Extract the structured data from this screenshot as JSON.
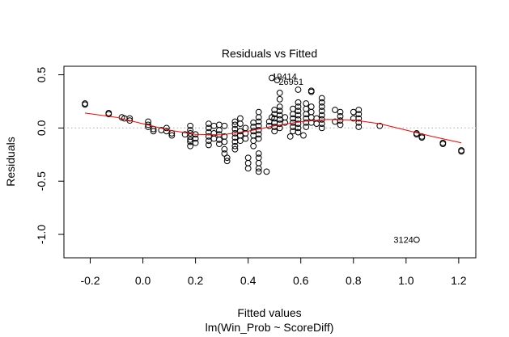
{
  "chart_data": {
    "type": "scatter",
    "title": "Residuals vs Fitted",
    "xlabel": "Fitted values",
    "subtitle": "lm(Win_Prob ~ ScoreDiff)",
    "ylabel": "Residuals",
    "xlim": [
      -0.3,
      1.265
    ],
    "ylim": [
      -1.22,
      0.58
    ],
    "x_ticks": [
      "-0.2",
      "0.0",
      "0.2",
      "0.4",
      "0.6",
      "0.8",
      "1.0",
      "1.2"
    ],
    "y_ticks": [
      "-1.0",
      "-0.5",
      "0.0",
      "0.5"
    ],
    "reference_line": {
      "y": 0,
      "style": "dotted",
      "color": "#bbbbbb"
    },
    "smooth_color": "#ff0000",
    "point_color": "#000000",
    "annotations": [
      {
        "text": "19414",
        "x": 0.5,
        "y": 0.47
      },
      {
        "text": "26951",
        "x": 0.51,
        "y": 0.45
      },
      {
        "text": "3124",
        "x": 1.04,
        "y": -1.05
      }
    ],
    "smooth": [
      {
        "x": -0.22,
        "y": 0.14
      },
      {
        "x": -0.1,
        "y": 0.1
      },
      {
        "x": 0.0,
        "y": 0.04
      },
      {
        "x": 0.1,
        "y": -0.02
      },
      {
        "x": 0.2,
        "y": -0.06
      },
      {
        "x": 0.3,
        "y": -0.065
      },
      {
        "x": 0.4,
        "y": -0.03
      },
      {
        "x": 0.5,
        "y": 0.02
      },
      {
        "x": 0.6,
        "y": 0.06
      },
      {
        "x": 0.7,
        "y": 0.08
      },
      {
        "x": 0.8,
        "y": 0.075
      },
      {
        "x": 0.9,
        "y": 0.04
      },
      {
        "x": 1.0,
        "y": -0.02
      },
      {
        "x": 1.1,
        "y": -0.08
      },
      {
        "x": 1.21,
        "y": -0.14
      }
    ],
    "points": [
      {
        "x": -0.22,
        "y": 0.22
      },
      {
        "x": -0.22,
        "y": 0.23
      },
      {
        "x": -0.13,
        "y": 0.13
      },
      {
        "x": -0.13,
        "y": 0.14
      },
      {
        "x": -0.08,
        "y": 0.1
      },
      {
        "x": -0.07,
        "y": 0.09
      },
      {
        "x": -0.05,
        "y": 0.09
      },
      {
        "x": -0.05,
        "y": 0.07
      },
      {
        "x": 0.02,
        "y": 0.06
      },
      {
        "x": 0.02,
        "y": 0.03
      },
      {
        "x": 0.02,
        "y": 0.01
      },
      {
        "x": 0.04,
        "y": -0.01
      },
      {
        "x": 0.04,
        "y": -0.03
      },
      {
        "x": 0.07,
        "y": -0.02
      },
      {
        "x": 0.09,
        "y": 0.0
      },
      {
        "x": 0.09,
        "y": -0.03
      },
      {
        "x": 0.11,
        "y": -0.05
      },
      {
        "x": 0.11,
        "y": -0.07
      },
      {
        "x": 0.16,
        "y": -0.06
      },
      {
        "x": 0.18,
        "y": 0.02
      },
      {
        "x": 0.18,
        "y": -0.02
      },
      {
        "x": 0.18,
        "y": -0.05
      },
      {
        "x": 0.18,
        "y": -0.08
      },
      {
        "x": 0.18,
        "y": -0.11
      },
      {
        "x": 0.18,
        "y": -0.13
      },
      {
        "x": 0.18,
        "y": -0.17
      },
      {
        "x": 0.2,
        "y": -0.1
      },
      {
        "x": 0.2,
        "y": -0.14
      },
      {
        "x": 0.2,
        "y": -0.06
      },
      {
        "x": 0.25,
        "y": 0.04
      },
      {
        "x": 0.25,
        "y": 0.0
      },
      {
        "x": 0.25,
        "y": -0.04
      },
      {
        "x": 0.25,
        "y": -0.08
      },
      {
        "x": 0.25,
        "y": -0.12
      },
      {
        "x": 0.25,
        "y": -0.16
      },
      {
        "x": 0.27,
        "y": -0.05
      },
      {
        "x": 0.27,
        "y": -0.1
      },
      {
        "x": 0.27,
        "y": 0.02
      },
      {
        "x": 0.29,
        "y": 0.03
      },
      {
        "x": 0.29,
        "y": -0.02
      },
      {
        "x": 0.29,
        "y": -0.06
      },
      {
        "x": 0.29,
        "y": -0.11
      },
      {
        "x": 0.29,
        "y": -0.15
      },
      {
        "x": 0.31,
        "y": 0.02
      },
      {
        "x": 0.31,
        "y": -0.08
      },
      {
        "x": 0.31,
        "y": -0.13
      },
      {
        "x": 0.31,
        "y": -0.2
      },
      {
        "x": 0.31,
        "y": -0.24
      },
      {
        "x": 0.32,
        "y": -0.28
      },
      {
        "x": 0.32,
        "y": -0.31
      },
      {
        "x": 0.35,
        "y": 0.06
      },
      {
        "x": 0.35,
        "y": 0.03
      },
      {
        "x": 0.35,
        "y": -0.01
      },
      {
        "x": 0.35,
        "y": -0.05
      },
      {
        "x": 0.35,
        "y": -0.09
      },
      {
        "x": 0.35,
        "y": -0.13
      },
      {
        "x": 0.35,
        "y": -0.17
      },
      {
        "x": 0.35,
        "y": -0.2
      },
      {
        "x": 0.37,
        "y": 0.09
      },
      {
        "x": 0.37,
        "y": 0.04
      },
      {
        "x": 0.37,
        "y": -0.03
      },
      {
        "x": 0.37,
        "y": -0.07
      },
      {
        "x": 0.37,
        "y": -0.12
      },
      {
        "x": 0.39,
        "y": 0.0
      },
      {
        "x": 0.39,
        "y": -0.05
      },
      {
        "x": 0.39,
        "y": -0.1
      },
      {
        "x": 0.4,
        "y": -0.28
      },
      {
        "x": 0.4,
        "y": -0.33
      },
      {
        "x": 0.4,
        "y": -0.38
      },
      {
        "x": 0.42,
        "y": 0.05
      },
      {
        "x": 0.42,
        "y": 0.01
      },
      {
        "x": 0.42,
        "y": -0.03
      },
      {
        "x": 0.42,
        "y": -0.07
      },
      {
        "x": 0.42,
        "y": -0.12
      },
      {
        "x": 0.42,
        "y": -0.17
      },
      {
        "x": 0.44,
        "y": 0.15
      },
      {
        "x": 0.44,
        "y": 0.1
      },
      {
        "x": 0.44,
        "y": 0.06
      },
      {
        "x": 0.44,
        "y": 0.02
      },
      {
        "x": 0.44,
        "y": -0.02
      },
      {
        "x": 0.44,
        "y": -0.06
      },
      {
        "x": 0.44,
        "y": -0.1
      },
      {
        "x": 0.44,
        "y": -0.24
      },
      {
        "x": 0.44,
        "y": -0.28
      },
      {
        "x": 0.44,
        "y": -0.33
      },
      {
        "x": 0.44,
        "y": -0.38
      },
      {
        "x": 0.44,
        "y": -0.41
      },
      {
        "x": 0.47,
        "y": -0.41
      },
      {
        "x": 0.48,
        "y": 0.02
      },
      {
        "x": 0.48,
        "y": 0.06
      },
      {
        "x": 0.49,
        "y": 0.47
      },
      {
        "x": 0.49,
        "y": 0.1
      },
      {
        "x": 0.51,
        "y": 0.45
      },
      {
        "x": 0.5,
        "y": 0.17
      },
      {
        "x": 0.5,
        "y": 0.13
      },
      {
        "x": 0.5,
        "y": 0.09
      },
      {
        "x": 0.5,
        "y": 0.05
      },
      {
        "x": 0.5,
        "y": 0.01
      },
      {
        "x": 0.5,
        "y": -0.03
      },
      {
        "x": 0.52,
        "y": 0.33
      },
      {
        "x": 0.52,
        "y": 0.27
      },
      {
        "x": 0.52,
        "y": 0.2
      },
      {
        "x": 0.52,
        "y": 0.16
      },
      {
        "x": 0.52,
        "y": 0.12
      },
      {
        "x": 0.52,
        "y": 0.08
      },
      {
        "x": 0.52,
        "y": 0.04
      },
      {
        "x": 0.52,
        "y": 0.0
      },
      {
        "x": 0.54,
        "y": 0.1
      },
      {
        "x": 0.54,
        "y": 0.05
      },
      {
        "x": 0.56,
        "y": -0.08
      },
      {
        "x": 0.57,
        "y": 0.18
      },
      {
        "x": 0.57,
        "y": 0.13
      },
      {
        "x": 0.57,
        "y": 0.09
      },
      {
        "x": 0.57,
        "y": 0.05
      },
      {
        "x": 0.57,
        "y": 0.01
      },
      {
        "x": 0.57,
        "y": -0.03
      },
      {
        "x": 0.59,
        "y": 0.36
      },
      {
        "x": 0.59,
        "y": 0.24
      },
      {
        "x": 0.59,
        "y": 0.2
      },
      {
        "x": 0.59,
        "y": 0.16
      },
      {
        "x": 0.59,
        "y": 0.12
      },
      {
        "x": 0.59,
        "y": 0.08
      },
      {
        "x": 0.59,
        "y": 0.04
      },
      {
        "x": 0.59,
        "y": 0.0
      },
      {
        "x": 0.59,
        "y": -0.04
      },
      {
        "x": 0.61,
        "y": -0.07
      },
      {
        "x": 0.62,
        "y": 0.23
      },
      {
        "x": 0.62,
        "y": 0.18
      },
      {
        "x": 0.62,
        "y": 0.13
      },
      {
        "x": 0.62,
        "y": 0.09
      },
      {
        "x": 0.62,
        "y": 0.05
      },
      {
        "x": 0.62,
        "y": 0.01
      },
      {
        "x": 0.64,
        "y": 0.35
      },
      {
        "x": 0.64,
        "y": 0.34
      },
      {
        "x": 0.64,
        "y": 0.2
      },
      {
        "x": 0.64,
        "y": 0.15
      },
      {
        "x": 0.64,
        "y": 0.1
      },
      {
        "x": 0.64,
        "y": 0.05
      },
      {
        "x": 0.66,
        "y": 0.09
      },
      {
        "x": 0.66,
        "y": 0.04
      },
      {
        "x": 0.68,
        "y": 0.28
      },
      {
        "x": 0.68,
        "y": 0.24
      },
      {
        "x": 0.68,
        "y": 0.2
      },
      {
        "x": 0.68,
        "y": 0.16
      },
      {
        "x": 0.68,
        "y": 0.12
      },
      {
        "x": 0.68,
        "y": 0.08
      },
      {
        "x": 0.68,
        "y": 0.04
      },
      {
        "x": 0.68,
        "y": 0.0
      },
      {
        "x": 0.73,
        "y": 0.17
      },
      {
        "x": 0.73,
        "y": 0.06
      },
      {
        "x": 0.75,
        "y": 0.15
      },
      {
        "x": 0.75,
        "y": 0.11
      },
      {
        "x": 0.75,
        "y": 0.07
      },
      {
        "x": 0.75,
        "y": 0.03
      },
      {
        "x": 0.8,
        "y": 0.15
      },
      {
        "x": 0.8,
        "y": 0.09
      },
      {
        "x": 0.82,
        "y": 0.17
      },
      {
        "x": 0.82,
        "y": 0.13
      },
      {
        "x": 0.82,
        "y": 0.09
      },
      {
        "x": 0.82,
        "y": 0.05
      },
      {
        "x": 0.82,
        "y": 0.01
      },
      {
        "x": 0.9,
        "y": 0.02
      },
      {
        "x": 1.04,
        "y": -0.05
      },
      {
        "x": 1.04,
        "y": -0.06
      },
      {
        "x": 1.06,
        "y": -0.08
      },
      {
        "x": 1.06,
        "y": -0.09
      },
      {
        "x": 1.14,
        "y": -0.14
      },
      {
        "x": 1.14,
        "y": -0.15
      },
      {
        "x": 1.21,
        "y": -0.21
      },
      {
        "x": 1.21,
        "y": -0.22
      },
      {
        "x": 1.04,
        "y": -1.05
      }
    ]
  }
}
